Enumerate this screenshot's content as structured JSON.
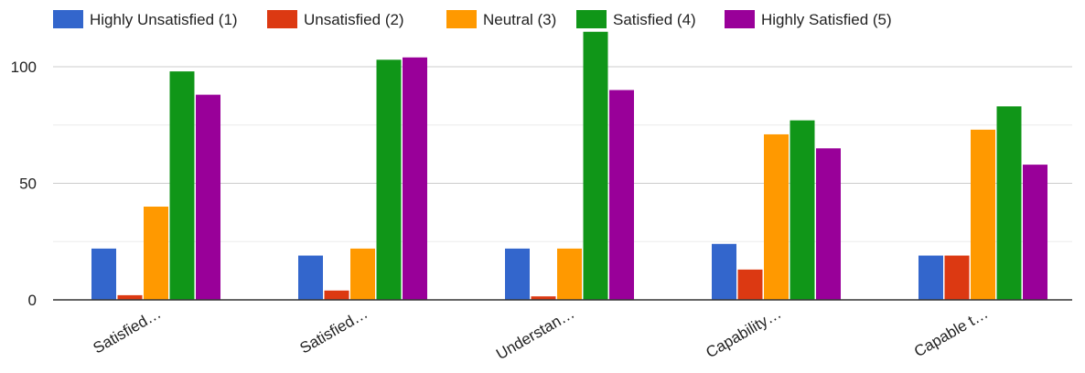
{
  "chart_data": {
    "type": "bar",
    "categories": [
      "Satisfied…",
      "Satisfied…",
      "Understan…",
      "Capability…",
      "Capable t…"
    ],
    "series": [
      {
        "name": "Highly Unsatisfied (1)",
        "color": "#3366cc",
        "values": [
          22,
          19,
          22,
          24,
          19
        ]
      },
      {
        "name": "Unsatisfied (2)",
        "color": "#dc3912",
        "values": [
          2,
          4,
          1.5,
          13,
          19
        ]
      },
      {
        "name": "Neutral (3)",
        "color": "#ff9900",
        "values": [
          40,
          22,
          22,
          71,
          73
        ]
      },
      {
        "name": "Satisfied (4)",
        "color": "#109618",
        "values": [
          98,
          103,
          115,
          77,
          83
        ]
      },
      {
        "name": "Highly Satisfied (5)",
        "color": "#990099",
        "values": [
          88,
          104,
          90,
          65,
          58
        ]
      }
    ],
    "y_ticks": [
      "0",
      "50",
      "100"
    ],
    "ylim": [
      0,
      115
    ],
    "grid": true,
    "legend_position": "top"
  }
}
